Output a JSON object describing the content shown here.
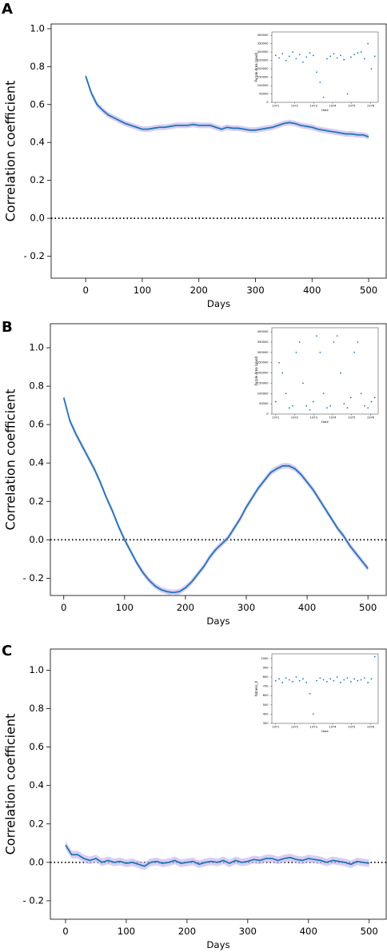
{
  "chart_data": [
    {
      "type": "line",
      "panel": "A",
      "y_label": "Correlation coefficient",
      "x_label": "Days",
      "xlim": [
        -61,
        531
      ],
      "ylim": [
        -0.316,
        1.025
      ],
      "xticks": [
        0,
        100,
        200,
        300,
        400,
        500
      ],
      "yticks": [
        {
          "value": -0.2,
          "label": "- 0.2"
        },
        {
          "value": 0,
          "label": "0.0"
        },
        {
          "value": 0.2,
          "label": "0.2"
        },
        {
          "value": 0.4,
          "label": "0.4"
        },
        {
          "value": 0.6,
          "label": "0.6"
        },
        {
          "value": 0.8,
          "label": "0.8"
        },
        {
          "value": 1,
          "label": "1.0"
        }
      ],
      "reference_line": 0,
      "band": 0.015,
      "x": [
        0,
        10,
        20,
        30,
        40,
        50,
        60,
        70,
        80,
        90,
        100,
        110,
        120,
        130,
        140,
        150,
        160,
        170,
        180,
        190,
        200,
        210,
        220,
        230,
        240,
        250,
        260,
        270,
        280,
        290,
        300,
        310,
        320,
        330,
        340,
        350,
        360,
        370,
        380,
        390,
        400,
        410,
        420,
        430,
        440,
        450,
        460,
        470,
        480,
        490,
        500
      ],
      "series": [
        {
          "color": "#1f77b4",
          "values": [
            0.75,
            0.66,
            0.6,
            0.57,
            0.545,
            0.53,
            0.515,
            0.5,
            0.49,
            0.48,
            0.47,
            0.47,
            0.475,
            0.48,
            0.48,
            0.485,
            0.49,
            0.49,
            0.49,
            0.495,
            0.49,
            0.49,
            0.49,
            0.48,
            0.47,
            0.48,
            0.475,
            0.475,
            0.47,
            0.465,
            0.465,
            0.47,
            0.475,
            0.48,
            0.49,
            0.5,
            0.505,
            0.5,
            0.49,
            0.485,
            0.48,
            0.47,
            0.465,
            0.46,
            0.455,
            0.45,
            0.445,
            0.445,
            0.44,
            0.44,
            0.43
          ]
        }
      ]
    },
    {
      "type": "scatter",
      "y_label": "Purple Area (pixel)",
      "x_label": "Date",
      "xlim": [
        1970.8,
        1976.4
      ],
      "ylim": [
        0,
        420000
      ],
      "xticks": [
        1971,
        1972,
        1973,
        1974,
        1975,
        1976
      ],
      "yticks": [
        0,
        50000,
        100000,
        150000,
        200000,
        250000,
        300000,
        350000,
        400000
      ],
      "color": "#1f77b4",
      "x": [
        1971.0,
        1971.18,
        1971.36,
        1971.54,
        1971.72,
        1971.9,
        1972.08,
        1972.26,
        1972.44,
        1972.62,
        1972.8,
        1972.98,
        1973.16,
        1973.34,
        1973.52,
        1973.7,
        1973.88,
        1974.06,
        1974.24,
        1974.42,
        1974.6,
        1974.78,
        1974.96,
        1975.14,
        1975.32,
        1975.5,
        1975.68,
        1975.86,
        1976.04,
        1976.22
      ],
      "values": [
        280000,
        265000,
        290000,
        250000,
        275000,
        300000,
        260000,
        285000,
        240000,
        270000,
        295000,
        280000,
        180000,
        120000,
        30000,
        260000,
        275000,
        290000,
        265000,
        280000,
        255000,
        50000,
        270000,
        285000,
        295000,
        300000,
        260000,
        350000,
        200000,
        275000
      ]
    },
    {
      "type": "line",
      "panel": "B",
      "y_label": "Correlation coefficient",
      "x_label": "Days",
      "xlim": [
        -22,
        530
      ],
      "ylim": [
        -0.29,
        1.125
      ],
      "xticks": [
        0,
        100,
        200,
        300,
        400,
        500
      ],
      "yticks": [
        {
          "value": -0.2,
          "label": "- 0.2"
        },
        {
          "value": 0,
          "label": "0.0"
        },
        {
          "value": 0.2,
          "label": "0.2"
        },
        {
          "value": 0.4,
          "label": "0.4"
        },
        {
          "value": 0.6,
          "label": "0.6"
        },
        {
          "value": 0.8,
          "label": "0.8"
        },
        {
          "value": 1,
          "label": "1.0"
        }
      ],
      "reference_line": 0,
      "band": 0.015,
      "x": [
        0,
        10,
        20,
        30,
        40,
        50,
        60,
        70,
        80,
        90,
        100,
        110,
        120,
        130,
        140,
        150,
        160,
        170,
        180,
        190,
        200,
        210,
        220,
        230,
        240,
        250,
        260,
        270,
        280,
        290,
        300,
        310,
        320,
        330,
        340,
        350,
        360,
        370,
        380,
        390,
        400,
        410,
        420,
        430,
        440,
        450,
        460,
        470,
        480,
        490,
        500
      ],
      "series": [
        {
          "color": "#1f77b4",
          "values": [
            0.74,
            0.62,
            0.55,
            0.49,
            0.43,
            0.37,
            0.3,
            0.22,
            0.15,
            0.07,
            0.0,
            -0.06,
            -0.12,
            -0.17,
            -0.21,
            -0.24,
            -0.26,
            -0.27,
            -0.275,
            -0.27,
            -0.25,
            -0.22,
            -0.18,
            -0.14,
            -0.09,
            -0.05,
            -0.02,
            0.01,
            0.06,
            0.11,
            0.17,
            0.22,
            0.27,
            0.31,
            0.35,
            0.37,
            0.385,
            0.385,
            0.37,
            0.34,
            0.3,
            0.26,
            0.21,
            0.16,
            0.11,
            0.06,
            0.02,
            -0.03,
            -0.07,
            -0.11,
            -0.15
          ]
        }
      ]
    },
    {
      "type": "scatter",
      "y_label": "Purple Area (pixel)",
      "x_label": "Date",
      "xlim": [
        1970.8,
        1976.4
      ],
      "ylim": [
        0,
        420000
      ],
      "xticks": [
        1971,
        1972,
        1973,
        1974,
        1975,
        1976
      ],
      "yticks": [
        0,
        50000,
        100000,
        150000,
        200000,
        250000,
        300000,
        350000,
        400000
      ],
      "color": "#1f77b4",
      "x": [
        1971.0,
        1971.18,
        1971.36,
        1971.54,
        1971.72,
        1971.9,
        1972.08,
        1972.26,
        1972.44,
        1972.62,
        1972.8,
        1972.98,
        1973.16,
        1973.34,
        1973.52,
        1973.7,
        1973.88,
        1974.06,
        1974.24,
        1974.42,
        1974.6,
        1974.78,
        1974.96,
        1975.14,
        1975.32,
        1975.5,
        1975.68,
        1975.86,
        1976.04,
        1976.22
      ],
      "values": [
        60000,
        250000,
        200000,
        100000,
        30000,
        40000,
        300000,
        350000,
        150000,
        40000,
        20000,
        60000,
        380000,
        300000,
        100000,
        30000,
        40000,
        350000,
        380000,
        200000,
        50000,
        30000,
        80000,
        300000,
        350000,
        100000,
        40000,
        30000,
        60000,
        80000
      ]
    },
    {
      "type": "line",
      "panel": "C",
      "y_label": "Correlation coefficient",
      "x_label": "Days",
      "xlim": [
        -25,
        528
      ],
      "ylim": [
        -0.296,
        1.11
      ],
      "xticks": [
        0,
        100,
        200,
        300,
        400,
        500
      ],
      "yticks": [
        {
          "value": -0.2,
          "label": "- 0.2"
        },
        {
          "value": 0,
          "label": "0.0"
        },
        {
          "value": 0.2,
          "label": "0.2"
        },
        {
          "value": 0.4,
          "label": "0.4"
        },
        {
          "value": 0.6,
          "label": "0.6"
        },
        {
          "value": 0.8,
          "label": "0.8"
        },
        {
          "value": 1,
          "label": "1.0"
        }
      ],
      "reference_line": 0,
      "band": 0.02,
      "x": [
        0,
        10,
        20,
        30,
        40,
        50,
        60,
        70,
        80,
        90,
        100,
        110,
        120,
        130,
        140,
        150,
        160,
        170,
        180,
        190,
        200,
        210,
        220,
        230,
        240,
        250,
        260,
        270,
        280,
        290,
        300,
        310,
        320,
        330,
        340,
        350,
        360,
        370,
        380,
        390,
        400,
        410,
        420,
        430,
        440,
        450,
        460,
        470,
        480,
        490,
        500
      ],
      "series": [
        {
          "color": "#1f77b4",
          "values": [
            0.09,
            0.04,
            0.04,
            0.02,
            0.01,
            0.02,
            0.0,
            0.01,
            0.0,
            0.005,
            -0.005,
            0.0,
            -0.01,
            -0.02,
            0.0,
            0.005,
            -0.005,
            0.0,
            0.01,
            -0.005,
            0.0,
            0.005,
            -0.01,
            0.0,
            0.005,
            0.0,
            0.01,
            -0.005,
            0.01,
            0.0,
            0.005,
            0.015,
            0.01,
            0.02,
            0.02,
            0.01,
            0.02,
            0.025,
            0.015,
            0.01,
            0.02,
            0.015,
            0.01,
            0.0,
            0.01,
            0.005,
            0.0,
            -0.01,
            0.005,
            0.0,
            -0.005
          ]
        }
      ]
    },
    {
      "type": "scatter",
      "y_label": "fatness_X",
      "x_label": "Date",
      "xlim": [
        1970.8,
        1976.4
      ],
      "ylim": [
        300,
        1050
      ],
      "xticks": [
        1971,
        1972,
        1973,
        1974,
        1975,
        1976
      ],
      "yticks": [
        300,
        400,
        500,
        600,
        700,
        800,
        900,
        1000
      ],
      "color": "#1f77b4",
      "x": [
        1971.0,
        1971.18,
        1971.36,
        1971.54,
        1971.72,
        1971.9,
        1972.08,
        1972.26,
        1972.44,
        1972.62,
        1972.8,
        1972.98,
        1973.16,
        1973.34,
        1973.52,
        1973.7,
        1973.88,
        1974.06,
        1974.24,
        1974.42,
        1974.6,
        1974.78,
        1974.96,
        1975.14,
        1975.32,
        1975.5,
        1975.68,
        1975.86,
        1976.04,
        1976.22
      ],
      "values": [
        760,
        780,
        740,
        790,
        770,
        750,
        800,
        760,
        780,
        740,
        620,
        400,
        760,
        790,
        770,
        750,
        780,
        760,
        800,
        740,
        770,
        790,
        750,
        780,
        760,
        770,
        790,
        740,
        780,
        1020
      ]
    }
  ]
}
